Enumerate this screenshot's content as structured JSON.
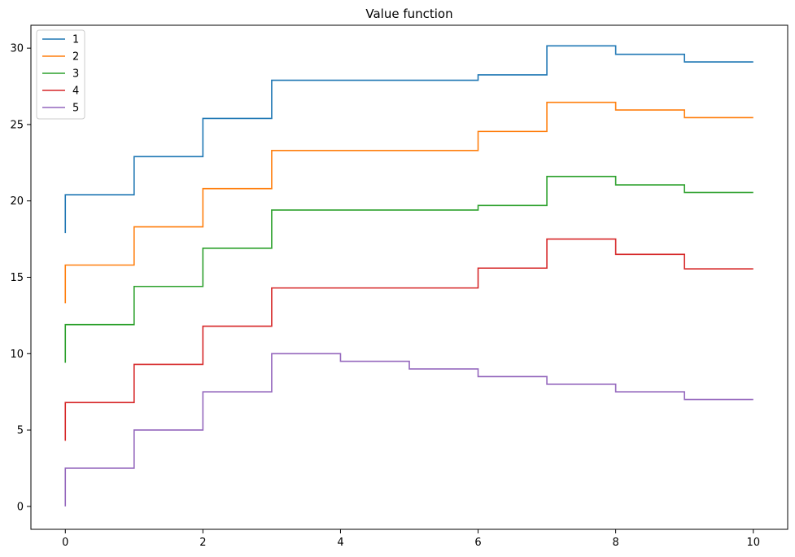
{
  "chart_data": {
    "type": "line",
    "step": "post",
    "title": "Value function",
    "xlabel": "",
    "ylabel": "",
    "xlim": [
      -0.5,
      10.5
    ],
    "ylim": [
      -1.5,
      31.5
    ],
    "xticks": [
      0,
      2,
      4,
      6,
      8,
      10
    ],
    "yticks": [
      0,
      5,
      10,
      15,
      20,
      25,
      30
    ],
    "grid": false,
    "legend": "top-left",
    "series": [
      {
        "name": "1",
        "color": "#1f77b4",
        "x": [
          0,
          0,
          1,
          2,
          3,
          6,
          7,
          8,
          9,
          10
        ],
        "y": [
          17.9,
          20.4,
          22.9,
          25.4,
          27.9,
          28.25,
          30.15,
          29.6,
          29.1,
          29.1
        ]
      },
      {
        "name": "2",
        "color": "#ff7f0e",
        "x": [
          0,
          0,
          1,
          2,
          3,
          6,
          7,
          8,
          9,
          10
        ],
        "y": [
          13.3,
          15.8,
          18.3,
          20.8,
          23.3,
          24.55,
          26.45,
          25.95,
          25.45,
          25.45
        ]
      },
      {
        "name": "3",
        "color": "#2ca02c",
        "x": [
          0,
          0,
          1,
          2,
          3,
          6,
          7,
          8,
          9,
          10
        ],
        "y": [
          9.4,
          11.9,
          14.4,
          16.9,
          19.4,
          19.7,
          21.6,
          21.05,
          20.55,
          20.55
        ]
      },
      {
        "name": "4",
        "color": "#d62728",
        "x": [
          0,
          0,
          1,
          2,
          3,
          6,
          7,
          8,
          9,
          10
        ],
        "y": [
          4.3,
          6.8,
          9.3,
          11.8,
          14.3,
          15.6,
          17.5,
          16.5,
          15.55,
          15.55
        ]
      },
      {
        "name": "5",
        "color": "#9467bd",
        "x": [
          0,
          0,
          1,
          2,
          3,
          4,
          5,
          6,
          7,
          8,
          9,
          10
        ],
        "y": [
          0,
          2.5,
          5.0,
          7.5,
          10.0,
          9.5,
          9.0,
          8.5,
          8.0,
          7.5,
          7.0,
          7.0
        ]
      }
    ]
  }
}
